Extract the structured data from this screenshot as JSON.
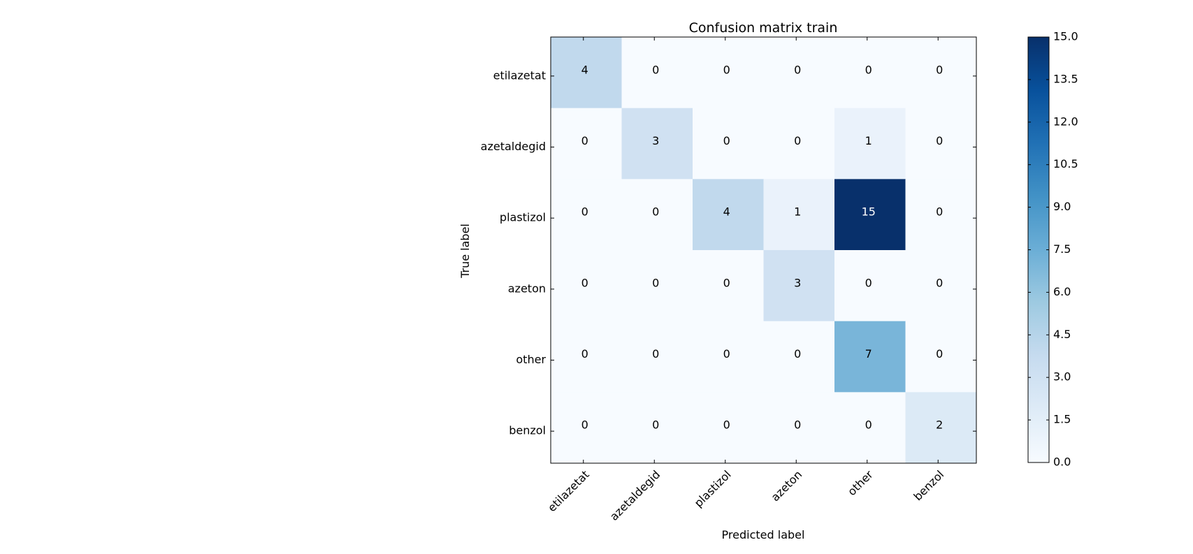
{
  "chart_data": {
    "type": "heatmap",
    "title": "Confusion matrix train",
    "xlabel": "Predicted label",
    "ylabel": "True label",
    "row_labels": [
      "etilazetat",
      "azetaldegid",
      "plastizol",
      "azeton",
      "other",
      "benzol"
    ],
    "col_labels": [
      "etilazetat",
      "azetaldegid",
      "plastizol",
      "azeton",
      "other",
      "benzol"
    ],
    "values": [
      [
        4,
        0,
        0,
        0,
        0,
        0
      ],
      [
        0,
        3,
        0,
        0,
        1,
        0
      ],
      [
        0,
        0,
        4,
        1,
        15,
        0
      ],
      [
        0,
        0,
        0,
        3,
        0,
        0
      ],
      [
        0,
        0,
        0,
        0,
        7,
        0
      ],
      [
        0,
        0,
        0,
        0,
        0,
        2
      ]
    ],
    "colormap": "Blues",
    "colorbar": {
      "range": [
        0,
        15
      ],
      "ticks": [
        "0.0",
        "1.5",
        "3.0",
        "4.5",
        "6.0",
        "7.5",
        "9.0",
        "10.5",
        "12.0",
        "13.5",
        "15.0"
      ]
    }
  }
}
